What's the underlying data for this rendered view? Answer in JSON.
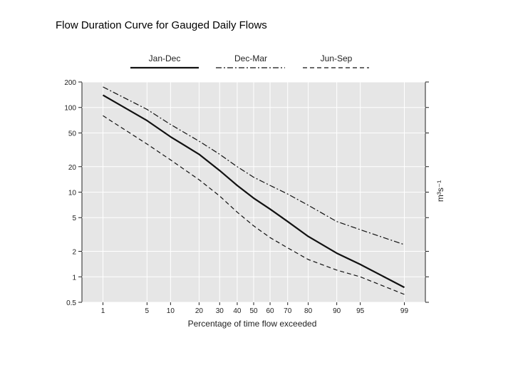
{
  "slide": {
    "title": "Flow Duration Curve for Gauged Daily Flows"
  },
  "chart_data": {
    "type": "line",
    "title": "",
    "xlabel": "Percentage of time flow exceeded",
    "ylabel": "m³s⁻¹",
    "x_scale": "normal-probability",
    "y_scale": "log",
    "xlim": [
      0.4,
      99.6
    ],
    "ylim": [
      0.5,
      200
    ],
    "x_ticks": [
      1,
      5,
      10,
      20,
      30,
      40,
      50,
      60,
      70,
      80,
      90,
      95,
      99
    ],
    "x_tick_labels": [
      "1",
      "5",
      "10",
      "20",
      "30",
      "40",
      "50",
      "60",
      "70",
      "80",
      "90",
      "95",
      "99"
    ],
    "y_ticks": [
      0.5,
      1,
      2,
      5,
      10,
      20,
      50,
      100,
      200
    ],
    "y_tick_labels": [
      "0.5",
      "1",
      "2",
      "5",
      "10",
      "20",
      "50",
      "100",
      "200"
    ],
    "grid": true,
    "legend_position": "top",
    "series": [
      {
        "name": "Jan-Dec",
        "style": "solid",
        "x": [
          1,
          5,
          10,
          20,
          30,
          40,
          50,
          60,
          70,
          80,
          90,
          95,
          99
        ],
        "y": [
          140,
          70,
          45,
          28,
          18,
          12,
          8.5,
          6.3,
          4.5,
          3.0,
          1.9,
          1.4,
          0.75
        ]
      },
      {
        "name": "Dec-Mar",
        "style": "dash-dot",
        "x": [
          1,
          5,
          10,
          20,
          30,
          40,
          50,
          60,
          70,
          80,
          90,
          95,
          99
        ],
        "y": [
          175,
          95,
          63,
          40,
          28,
          20,
          15,
          12,
          9.5,
          7.0,
          4.5,
          3.6,
          2.4
        ]
      },
      {
        "name": "Jun-Sep",
        "style": "dashed",
        "x": [
          1,
          5,
          10,
          20,
          30,
          40,
          50,
          60,
          70,
          80,
          90,
          95,
          99
        ],
        "y": [
          80,
          37,
          24,
          14,
          9,
          5.8,
          4.0,
          2.9,
          2.2,
          1.6,
          1.2,
          1.0,
          0.62
        ]
      }
    ]
  }
}
